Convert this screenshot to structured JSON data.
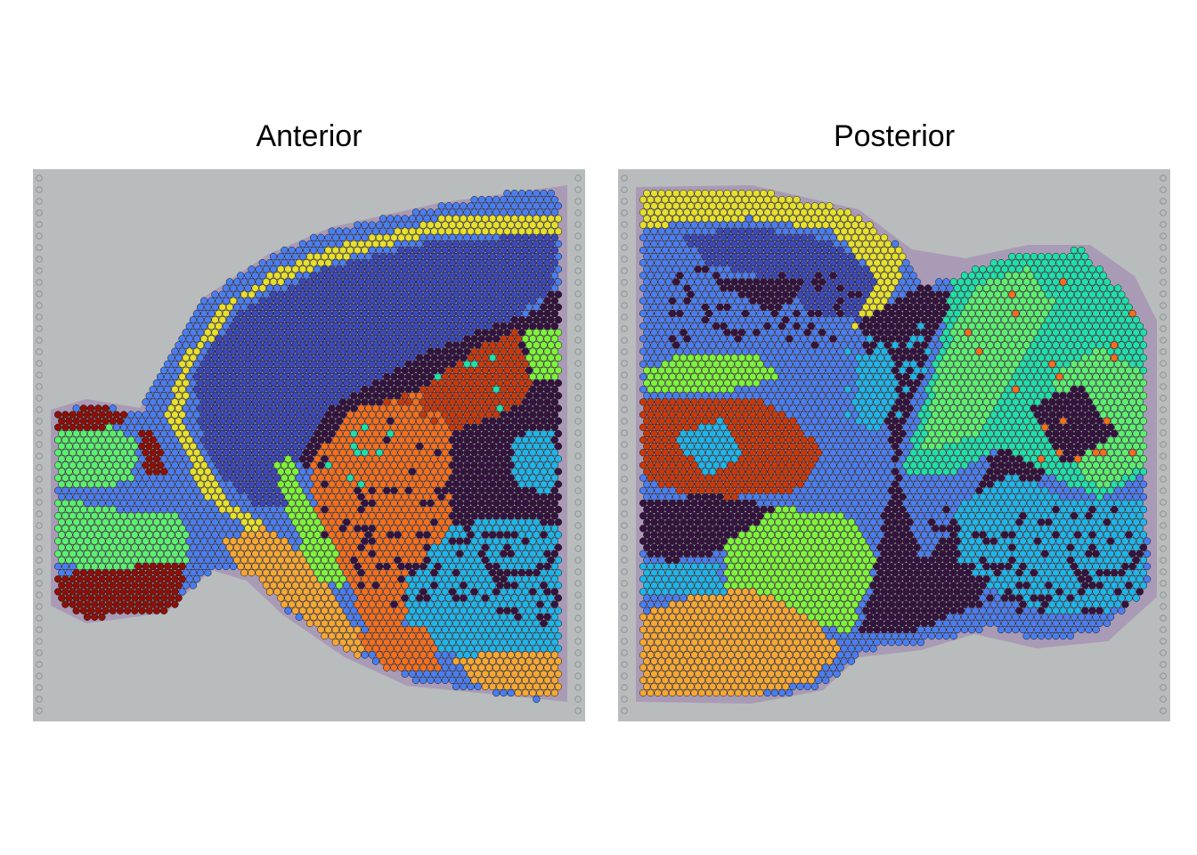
{
  "panels": [
    {
      "title": "Anterior"
    },
    {
      "title": "Posterior"
    }
  ],
  "colors": {
    "background_tissue": "#b9bcbc",
    "tissue_stain": "#9c7fb0",
    "cluster_palette": [
      "#3a48b8",
      "#4a7ef0",
      "#1fb5e8",
      "#1fe0a8",
      "#7ef43a",
      "#e6e02e",
      "#f6a832",
      "#f46f1c",
      "#c8380a",
      "#8e0f06",
      "#35133f",
      "#5cf070"
    ]
  }
}
